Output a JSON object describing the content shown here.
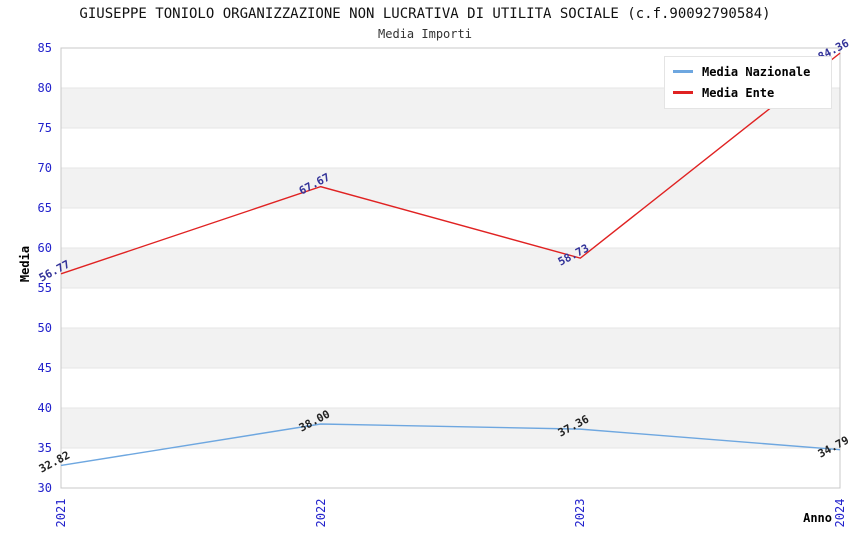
{
  "chart_data": {
    "type": "line",
    "title": "GIUSEPPE TONIOLO ORGANIZZAZIONE NON LUCRATIVA DI UTILITA SOCIALE (c.f.90092790584)",
    "subtitle": "Media Importi",
    "xlabel": "Anno",
    "ylabel": "Media",
    "categories": [
      "2021",
      "2022",
      "2023",
      "2024"
    ],
    "ylim": [
      30,
      85
    ],
    "ytick_step": 5,
    "grid": "horizontal-bands",
    "legend_position": "top-right",
    "series": [
      {
        "name": "Media Nazionale",
        "values": [
          32.82,
          38.0,
          37.36,
          34.79
        ],
        "point_labels": [
          "32.82",
          "38.00",
          "37.36",
          "34.79"
        ],
        "color": "#6ea7e0",
        "label_color": "#222222"
      },
      {
        "name": "Media Ente",
        "values": [
          56.77,
          67.67,
          58.73,
          84.36
        ],
        "point_labels": [
          "56.77",
          "67.67",
          "58.73",
          "84.36"
        ],
        "color": "#e02222",
        "label_color": "#333399"
      }
    ],
    "colors": {
      "tick_label": "#2222cc",
      "band_gray": "#f2f2f2",
      "gridline": "#e6e6e6",
      "frame": "#c8c8c8"
    }
  }
}
